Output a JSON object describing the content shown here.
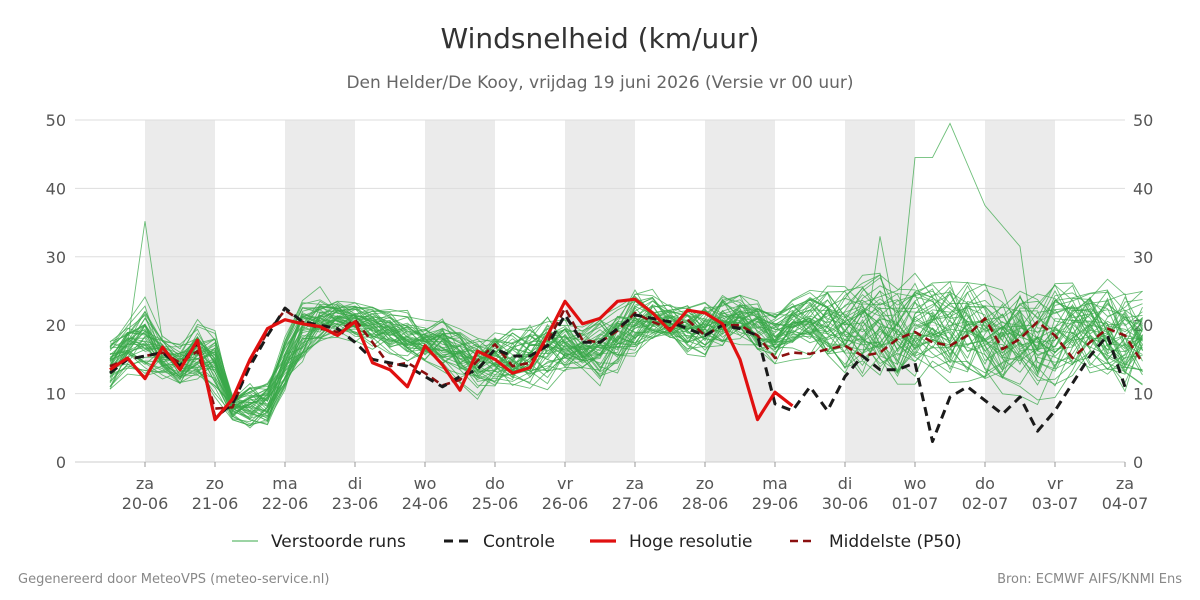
{
  "page": {
    "title": "Windsnelheid (km/uur)",
    "subtitle": "Den Helder/De Kooy, vrijdag 19 juni 2026 (Versie vr 00 uur)",
    "footer_left": "Gegenereerd door MeteoVPS (meteo-service.nl)",
    "footer_right": "Bron: ECMWF AIFS/KNMI Ens"
  },
  "chart_data": {
    "type": "line",
    "title": "Windsnelheid (km/uur)",
    "ylim": [
      0,
      50
    ],
    "yticks": [
      0,
      10,
      20,
      30,
      40,
      50
    ],
    "xlim": [
      0,
      14.5
    ],
    "x_unit": "days from 19-06 12h",
    "xticks": [
      {
        "x": 0.5,
        "day": "za",
        "date": "20-06"
      },
      {
        "x": 1.5,
        "day": "zo",
        "date": "21-06"
      },
      {
        "x": 2.5,
        "day": "ma",
        "date": "22-06"
      },
      {
        "x": 3.5,
        "day": "di",
        "date": "23-06"
      },
      {
        "x": 4.5,
        "day": "wo",
        "date": "24-06"
      },
      {
        "x": 5.5,
        "day": "do",
        "date": "25-06"
      },
      {
        "x": 6.5,
        "day": "vr",
        "date": "26-06"
      },
      {
        "x": 7.5,
        "day": "za",
        "date": "27-06"
      },
      {
        "x": 8.5,
        "day": "zo",
        "date": "28-06"
      },
      {
        "x": 9.5,
        "day": "ma",
        "date": "29-06"
      },
      {
        "x": 10.5,
        "day": "di",
        "date": "30-06"
      },
      {
        "x": 11.5,
        "day": "wo",
        "date": "01-07"
      },
      {
        "x": 12.5,
        "day": "do",
        "date": "02-07"
      },
      {
        "x": 13.5,
        "day": "vr",
        "date": "03-07"
      },
      {
        "x": 14.5,
        "day": "za",
        "date": "04-07"
      }
    ],
    "shaded_bands": [
      [
        0.5,
        1.5
      ],
      [
        2.5,
        3.5
      ],
      [
        4.5,
        5.5
      ],
      [
        6.5,
        7.5
      ],
      [
        8.5,
        9.5
      ],
      [
        10.5,
        11.5
      ],
      [
        12.5,
        13.5
      ]
    ],
    "grid": true,
    "legend_position": "bottom",
    "legend": [
      {
        "key": "ensemble",
        "label": "Verstoorde runs",
        "color": "#3aa84a",
        "style": "thin"
      },
      {
        "key": "control",
        "label": "Controle",
        "color": "#1a1a1a",
        "style": "dashed"
      },
      {
        "key": "hires",
        "label": "Hoge resolutie",
        "color": "#e01010",
        "style": "solid"
      },
      {
        "key": "median",
        "label": "Middelste (P50)",
        "color": "#8b1010",
        "style": "dashed"
      }
    ],
    "ensemble": {
      "name": "Verstoorde runs",
      "color": "#3aa84a",
      "members": 50,
      "x_step": 0.25,
      "x_start": 0,
      "band_lower": [
        10.5,
        12.8,
        11.2,
        11.8,
        10.5,
        11.0,
        8.5,
        5.8,
        4.2,
        4.8,
        9.8,
        13.5,
        16.5,
        17.8,
        17.2,
        16.5,
        15.2,
        14.2,
        13.8,
        12.2,
        10.8,
        9.2,
        9.8,
        8.8,
        9.5,
        10.2,
        11.5,
        12.2,
        10.5,
        11.2,
        13.8,
        16.5,
        17.2,
        14.8,
        14.2,
        15.2,
        16.2,
        14.5,
        13.2,
        14.2,
        14.8,
        12.2,
        11.5,
        10.5,
        11.2,
        10.2,
        10.8,
        11.2,
        9.8,
        10.5,
        10.2,
        9.2,
        9.8,
        8.8,
        9.2,
        10.2,
        9.5,
        10.2,
        8.8,
        9.5
      ],
      "band_upper": [
        17.5,
        20.5,
        24.5,
        19.2,
        17.8,
        21.2,
        20.8,
        10.2,
        12.2,
        12.8,
        19.5,
        24.2,
        25.5,
        24.8,
        24.2,
        23.5,
        22.8,
        22.2,
        20.8,
        21.8,
        20.2,
        19.5,
        20.5,
        21.2,
        22.2,
        22.8,
        21.8,
        20.2,
        21.5,
        23.8,
        26.2,
        25.8,
        23.8,
        24.2,
        25.2,
        26.5,
        25.8,
        24.8,
        23.2,
        24.5,
        25.2,
        26.8,
        27.2,
        28.5,
        27.8,
        26.2,
        27.5,
        26.8,
        27.8,
        28.5,
        28.2,
        27.5,
        28.8,
        27.2,
        28.8,
        27.5,
        28.2,
        27.8,
        28.5,
        27.2
      ],
      "spike": {
        "x": 0.5,
        "value": 35.2
      },
      "high_run": [
        [
          11.0,
          33.0
        ],
        [
          11.5,
          44.5
        ],
        [
          11.75,
          44.5
        ],
        [
          12.0,
          49.5
        ],
        [
          12.25,
          43.5
        ],
        [
          12.5,
          37.5
        ],
        [
          12.75,
          34.5
        ],
        [
          13.0,
          31.5
        ]
      ]
    },
    "series": [
      {
        "name": "Controle",
        "x_start": 0,
        "x_step": 0.25,
        "values": [
          13.0,
          15.0,
          15.5,
          16.0,
          14.0,
          17.5,
          6.5,
          8.5,
          14.0,
          18.5,
          22.5,
          20.5,
          20.0,
          19.5,
          17.5,
          15.0,
          14.5,
          14.0,
          12.5,
          11.0,
          12.5,
          13.5,
          16.5,
          15.5,
          15.5,
          17.0,
          21.5,
          17.5,
          17.5,
          19.5,
          21.5,
          21.0,
          20.5,
          19.5,
          18.5,
          20.0,
          19.5,
          18.5,
          8.5,
          7.5,
          11.0,
          7.5,
          12.5,
          15.5,
          13.5,
          13.5,
          14.5,
          3.0,
          9.5,
          11.0,
          9.0,
          7.0,
          9.5,
          4.5,
          7.5,
          11.5,
          15.5,
          18.5,
          11.0
        ]
      },
      {
        "name": "Hoge resolutie",
        "x_start": 0,
        "x_step": 0.25,
        "values": [
          13.5,
          15.2,
          12.2,
          16.8,
          13.5,
          17.8,
          6.2,
          9.2,
          15.0,
          19.5,
          20.8,
          20.2,
          19.8,
          18.5,
          20.5,
          14.5,
          13.5,
          11.0,
          17.0,
          14.2,
          10.5,
          16.2,
          15.0,
          13.0,
          13.8,
          18.5,
          23.5,
          20.2,
          21.0,
          23.5,
          23.8,
          21.8,
          19.2,
          22.2,
          21.8,
          20.2,
          15.0,
          6.2,
          10.2,
          8.2
        ]
      },
      {
        "name": "Middelste (P50)",
        "x_start": 0,
        "x_step": 0.25,
        "values": [
          14.0,
          15.0,
          15.5,
          16.0,
          14.5,
          16.2,
          7.8,
          8.0,
          14.5,
          19.0,
          22.2,
          20.5,
          19.5,
          19.0,
          20.8,
          17.5,
          14.0,
          14.5,
          13.0,
          11.2,
          12.0,
          14.8,
          17.2,
          14.0,
          14.5,
          17.5,
          22.5,
          17.8,
          17.5,
          19.2,
          21.8,
          20.5,
          19.5,
          20.8,
          18.5,
          20.0,
          20.0,
          18.5,
          15.2,
          16.0,
          15.8,
          16.5,
          17.0,
          15.5,
          16.0,
          18.0,
          19.0,
          17.5,
          17.0,
          18.5,
          21.0,
          16.5,
          18.0,
          20.5,
          18.5,
          15.2,
          17.5,
          19.5,
          18.5,
          14.5
        ]
      }
    ]
  }
}
